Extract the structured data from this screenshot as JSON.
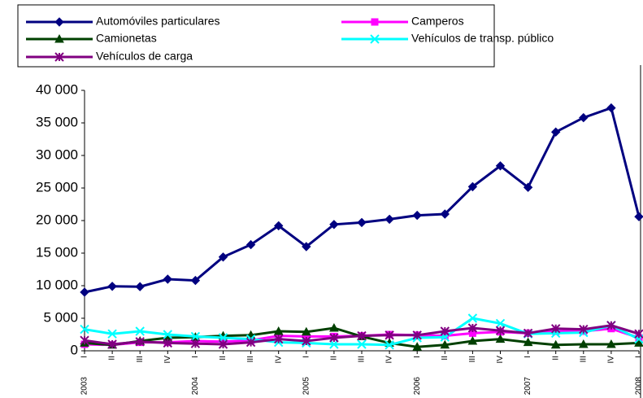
{
  "chart_data": {
    "type": "line",
    "categories": [
      "I",
      "II",
      "III",
      "IV",
      "I",
      "II",
      "III",
      "IV",
      "I",
      "II",
      "III",
      "IV",
      "I",
      "II",
      "III",
      "IV",
      "I",
      "II",
      "III",
      "IV",
      "I"
    ],
    "x_groups": [
      "2003",
      "2004",
      "2005",
      "2006",
      "2007",
      "2008"
    ],
    "series": [
      {
        "name": "Automóviles particulares",
        "color": "#000080",
        "marker": "diamond",
        "values": [
          9000,
          9900,
          9850,
          11000,
          10800,
          14400,
          16300,
          19200,
          16000,
          19400,
          19700,
          20200,
          20800,
          21000,
          25200,
          28400,
          25100,
          33600,
          35800,
          37300,
          20600
        ]
      },
      {
        "name": "Camperos",
        "color": "#ff00ff",
        "marker": "square",
        "values": [
          1000,
          900,
          1300,
          1300,
          1500,
          1400,
          1600,
          2300,
          2200,
          2200,
          2300,
          2500,
          2400,
          2300,
          2700,
          2900,
          2700,
          3000,
          3000,
          3400,
          2000
        ]
      },
      {
        "name": "Camionetas",
        "color": "#004000",
        "marker": "triangle",
        "values": [
          1200,
          900,
          1500,
          2000,
          2100,
          2300,
          2400,
          3000,
          2900,
          3500,
          2200,
          1200,
          600,
          900,
          1500,
          1800,
          1300,
          900,
          1000,
          1000,
          1200
        ]
      },
      {
        "name": "Vehículos de transp. público",
        "color": "#00ffff",
        "marker": "x",
        "values": [
          3300,
          2600,
          3000,
          2500,
          2200,
          2000,
          1800,
          1300,
          1200,
          1000,
          1000,
          900,
          2000,
          2100,
          5000,
          4200,
          2600,
          2700,
          2800,
          3900,
          1800
        ]
      },
      {
        "name": "Vehículos de carga",
        "color": "#800080",
        "marker": "star",
        "values": [
          1600,
          1000,
          1400,
          1200,
          1100,
          1000,
          1300,
          1800,
          1500,
          2000,
          2300,
          2400,
          2400,
          3000,
          3500,
          3100,
          2700,
          3400,
          3300,
          3900,
          2600
        ]
      }
    ],
    "ylim": [
      0,
      40000
    ],
    "yticks": [
      0,
      {
        "value": 5000,
        "label": "5 000"
      },
      {
        "value": 10000,
        "label": "10 000"
      },
      {
        "value": 15000,
        "label": "15 000"
      },
      {
        "value": 20000,
        "label": "20 000"
      },
      {
        "value": 25000,
        "label": "25 000"
      },
      {
        "value": 30000,
        "label": "30 000"
      },
      {
        "value": 35000,
        "label": "35 000"
      },
      {
        "value": 40000,
        "label": "40 000"
      }
    ],
    "grid": false,
    "legend": "top"
  }
}
